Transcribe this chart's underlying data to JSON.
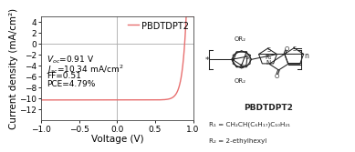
{
  "xlabel": "Voltage (V)",
  "ylabel": "Current density (mA/cm²)",
  "xlim": [
    -1.0,
    1.0
  ],
  "ylim": [
    -14,
    5
  ],
  "yticks": [
    -12,
    -10,
    -8,
    -6,
    -4,
    -2,
    0,
    2,
    4
  ],
  "xticks": [
    -1.0,
    -0.5,
    0.0,
    0.5,
    1.0
  ],
  "line_color": "#e87070",
  "line_label": "PBDTDPT2",
  "annot_voc": "V",
  "annot_jsc": "J",
  "annot_ff": "FF=0.51",
  "annot_pce": "PCE=4.79%",
  "background_color": "#ffffff",
  "tick_fontsize": 6.5,
  "label_fontsize": 7.5,
  "annot_fontsize": 6.5,
  "legend_fontsize": 7,
  "struct_color": "#222222",
  "compound_name": "PBDTDPT2",
  "r1_text": "R",
  "r1_sub": "1",
  "r1_val": " = CH₂CH(C₆H₁₇)C₁₀H₂₁",
  "r2_text": "R",
  "r2_sub": "2",
  "r2_val": " = 2-ethylhexyl"
}
